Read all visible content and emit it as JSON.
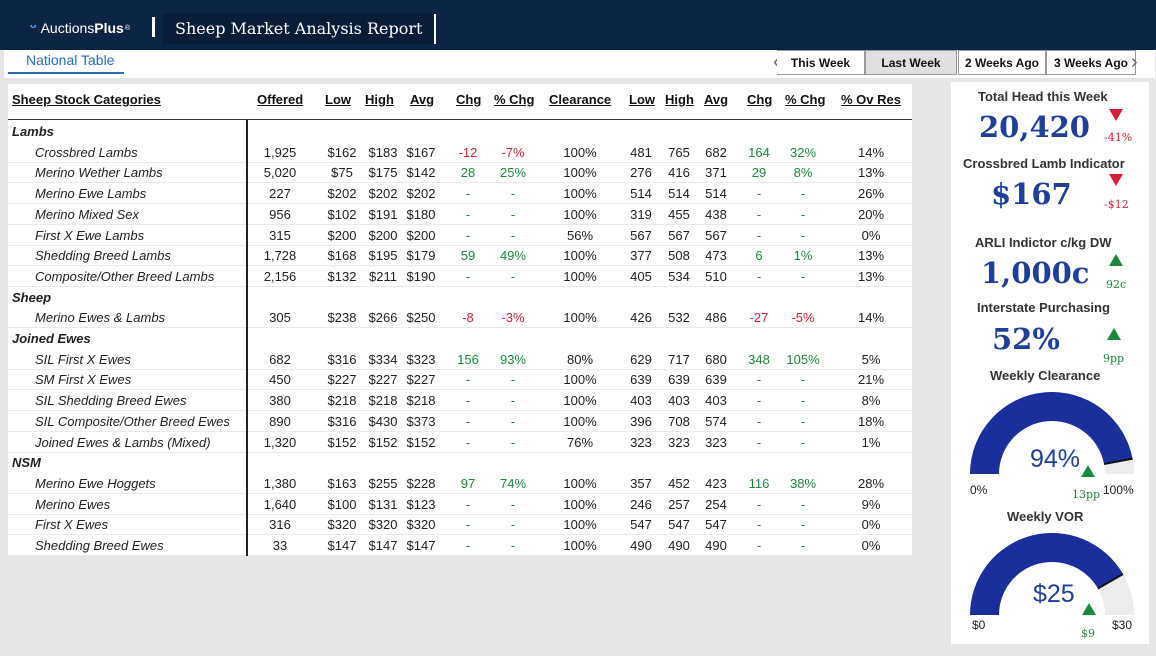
{
  "header": {
    "brand_prefix": "Auctions",
    "brand_bold": "Plus",
    "trademark": "®",
    "report_title": "Sheep Market Analysis Report"
  },
  "tabs": {
    "national": "National Table"
  },
  "week_buttons": [
    "This Week",
    "Last Week",
    "2 Weeks Ago",
    "3 Weeks Ago"
  ],
  "selected_week": "Last Week",
  "table": {
    "columns": [
      "Sheep Stock Categories",
      "Offered",
      "Low",
      "High",
      "Avg",
      "Chg",
      "% Chg",
      "Clearance",
      "Low",
      "High",
      "Avg",
      "Chg",
      "% Chg",
      "% Ov Res"
    ],
    "rows": [
      {
        "type": "group",
        "name": "Lambs"
      },
      {
        "type": "item",
        "name": "Crossbred Lambs",
        "offered": "1,925",
        "low": "$162",
        "high": "$183",
        "avg": "$167",
        "chg": "-12",
        "pchg": "-7%",
        "chg_dir": "down",
        "clearance": "100%",
        "low2": "481",
        "high2": "765",
        "avg2": "682",
        "chg2": "164",
        "pchg2": "32%",
        "chg2_dir": "up",
        "ovres": "14%"
      },
      {
        "type": "item",
        "name": "Merino Wether Lambs",
        "offered": "5,020",
        "low": "$75",
        "high": "$175",
        "avg": "$142",
        "chg": "28",
        "pchg": "25%",
        "chg_dir": "up",
        "clearance": "100%",
        "low2": "276",
        "high2": "416",
        "avg2": "371",
        "chg2": "29",
        "pchg2": "8%",
        "chg2_dir": "up",
        "ovres": "13%"
      },
      {
        "type": "item",
        "name": "Merino Ewe Lambs",
        "offered": "227",
        "low": "$202",
        "high": "$202",
        "avg": "$202",
        "chg": "-",
        "pchg": "-",
        "chg_dir": "none",
        "clearance": "100%",
        "low2": "514",
        "high2": "514",
        "avg2": "514",
        "chg2": "-",
        "pchg2": "-",
        "chg2_dir": "none",
        "ovres": "26%"
      },
      {
        "type": "item",
        "name": "Merino Mixed Sex",
        "offered": "956",
        "low": "$102",
        "high": "$191",
        "avg": "$180",
        "chg": "-",
        "pchg": "-",
        "chg_dir": "none",
        "clearance": "100%",
        "low2": "319",
        "high2": "455",
        "avg2": "438",
        "chg2": "-",
        "pchg2": "-",
        "chg2_dir": "none",
        "ovres": "20%"
      },
      {
        "type": "item",
        "name": "First X Ewe Lambs",
        "offered": "315",
        "low": "$200",
        "high": "$200",
        "avg": "$200",
        "chg": "-",
        "pchg": "-",
        "chg_dir": "none",
        "clearance": "56%",
        "low2": "567",
        "high2": "567",
        "avg2": "567",
        "chg2": "-",
        "pchg2": "-",
        "chg2_dir": "none",
        "ovres": "0%"
      },
      {
        "type": "item",
        "name": "Shedding Breed Lambs",
        "offered": "1,728",
        "low": "$168",
        "high": "$195",
        "avg": "$179",
        "chg": "59",
        "pchg": "49%",
        "chg_dir": "up",
        "clearance": "100%",
        "low2": "377",
        "high2": "508",
        "avg2": "473",
        "chg2": "6",
        "pchg2": "1%",
        "chg2_dir": "up",
        "ovres": "13%"
      },
      {
        "type": "item",
        "name": "Composite/Other Breed Lambs",
        "offered": "2,156",
        "low": "$132",
        "high": "$211",
        "avg": "$190",
        "chg": "-",
        "pchg": "-",
        "chg_dir": "none",
        "clearance": "100%",
        "low2": "405",
        "high2": "534",
        "avg2": "510",
        "chg2": "-",
        "pchg2": "-",
        "chg2_dir": "none",
        "ovres": "13%"
      },
      {
        "type": "group",
        "name": "Sheep"
      },
      {
        "type": "item",
        "name": "Merino Ewes & Lambs",
        "offered": "305",
        "low": "$238",
        "high": "$266",
        "avg": "$250",
        "chg": "-8",
        "pchg": "-3%",
        "chg_dir": "down",
        "clearance": "100%",
        "low2": "426",
        "high2": "532",
        "avg2": "486",
        "chg2": "-27",
        "pchg2": "-5%",
        "chg2_dir": "down",
        "ovres": "14%"
      },
      {
        "type": "group",
        "name": "Joined Ewes"
      },
      {
        "type": "item",
        "name": "SIL First X Ewes",
        "offered": "682",
        "low": "$316",
        "high": "$334",
        "avg": "$323",
        "chg": "156",
        "pchg": "93%",
        "chg_dir": "up",
        "clearance": "80%",
        "low2": "629",
        "high2": "717",
        "avg2": "680",
        "chg2": "348",
        "pchg2": "105%",
        "chg2_dir": "up",
        "ovres": "5%"
      },
      {
        "type": "item",
        "name": "SM First X Ewes",
        "offered": "450",
        "low": "$227",
        "high": "$227",
        "avg": "$227",
        "chg": "-",
        "pchg": "-",
        "chg_dir": "none",
        "clearance": "100%",
        "low2": "639",
        "high2": "639",
        "avg2": "639",
        "chg2": "-",
        "pchg2": "-",
        "chg2_dir": "none",
        "ovres": "21%"
      },
      {
        "type": "item",
        "name": "SIL Shedding Breed Ewes",
        "offered": "380",
        "low": "$218",
        "high": "$218",
        "avg": "$218",
        "chg": "-",
        "pchg": "-",
        "chg_dir": "none",
        "clearance": "100%",
        "low2": "403",
        "high2": "403",
        "avg2": "403",
        "chg2": "-",
        "pchg2": "-",
        "chg2_dir": "none",
        "ovres": "8%"
      },
      {
        "type": "item",
        "name": "SIL Composite/Other Breed Ewes",
        "offered": "890",
        "low": "$316",
        "high": "$430",
        "avg": "$373",
        "chg": "-",
        "pchg": "-",
        "chg_dir": "none",
        "clearance": "100%",
        "low2": "396",
        "high2": "708",
        "avg2": "574",
        "chg2": "-",
        "pchg2": "-",
        "chg2_dir": "none",
        "ovres": "18%"
      },
      {
        "type": "item",
        "name": "Joined Ewes & Lambs (Mixed)",
        "offered": "1,320",
        "low": "$152",
        "high": "$152",
        "avg": "$152",
        "chg": "-",
        "pchg": "-",
        "chg_dir": "none",
        "clearance": "76%",
        "low2": "323",
        "high2": "323",
        "avg2": "323",
        "chg2": "-",
        "pchg2": "-",
        "chg2_dir": "none",
        "ovres": "1%"
      },
      {
        "type": "group",
        "name": "NSM"
      },
      {
        "type": "item",
        "name": "Merino Ewe Hoggets",
        "offered": "1,380",
        "low": "$163",
        "high": "$255",
        "avg": "$228",
        "chg": "97",
        "pchg": "74%",
        "chg_dir": "up",
        "clearance": "100%",
        "low2": "357",
        "high2": "452",
        "avg2": "423",
        "chg2": "116",
        "pchg2": "38%",
        "chg2_dir": "up",
        "ovres": "28%"
      },
      {
        "type": "item",
        "name": "Merino Ewes",
        "offered": "1,640",
        "low": "$100",
        "high": "$131",
        "avg": "$123",
        "chg": "-",
        "pchg": "-",
        "chg_dir": "none",
        "clearance": "100%",
        "low2": "246",
        "high2": "257",
        "avg2": "254",
        "chg2": "-",
        "pchg2": "-",
        "chg2_dir": "none",
        "ovres": "9%"
      },
      {
        "type": "item",
        "name": "First X Ewes",
        "offered": "316",
        "low": "$320",
        "high": "$320",
        "avg": "$320",
        "chg": "-",
        "pchg": "-",
        "chg_dir": "none",
        "clearance": "100%",
        "low2": "547",
        "high2": "547",
        "avg2": "547",
        "chg2": "-",
        "pchg2": "-",
        "chg2_dir": "none",
        "ovres": "0%"
      },
      {
        "type": "item",
        "name": "Shedding Breed Ewes",
        "offered": "33",
        "low": "$147",
        "high": "$147",
        "avg": "$147",
        "chg": "-",
        "pchg": "-",
        "chg_dir": "none",
        "clearance": "100%",
        "low2": "490",
        "high2": "490",
        "avg2": "490",
        "chg2": "-",
        "pchg2": "-",
        "chg2_dir": "none",
        "ovres": "0%"
      }
    ]
  },
  "kpis": {
    "total_head": {
      "title": "Total Head this Week",
      "value": "20,420",
      "delta": "-41%",
      "direction": "down"
    },
    "crossbred": {
      "title": "Crossbred Lamb Indicator",
      "value": "$167",
      "delta": "-$12",
      "direction": "down"
    },
    "arli": {
      "title": "ARLI Indictor c/kg DW",
      "value": "1,000c",
      "delta": "92c",
      "direction": "up"
    },
    "interstate": {
      "title": "Interstate Purchasing",
      "value": "52%",
      "delta": "9pp",
      "direction": "up"
    }
  },
  "gauges": {
    "clearance": {
      "title": "Weekly Clearance",
      "value_label": "94%",
      "value": 94,
      "min": 0,
      "max": 100,
      "min_label": "0%",
      "max_label": "100%",
      "delta": "13pp",
      "direction": "up"
    },
    "vor": {
      "title": "Weekly VOR",
      "value_label": "$25",
      "value": 25,
      "min": 0,
      "max": 30,
      "min_label": "$0",
      "max_label": "$30",
      "delta": "$9",
      "direction": "up"
    }
  },
  "colors": {
    "navy": "#0d2545",
    "kpi_blue": "#1f3f9a",
    "gauge_blue": "#1a2e9c",
    "up": "#1b8a3a",
    "down": "#d6203a",
    "link": "#2a6cb0"
  }
}
